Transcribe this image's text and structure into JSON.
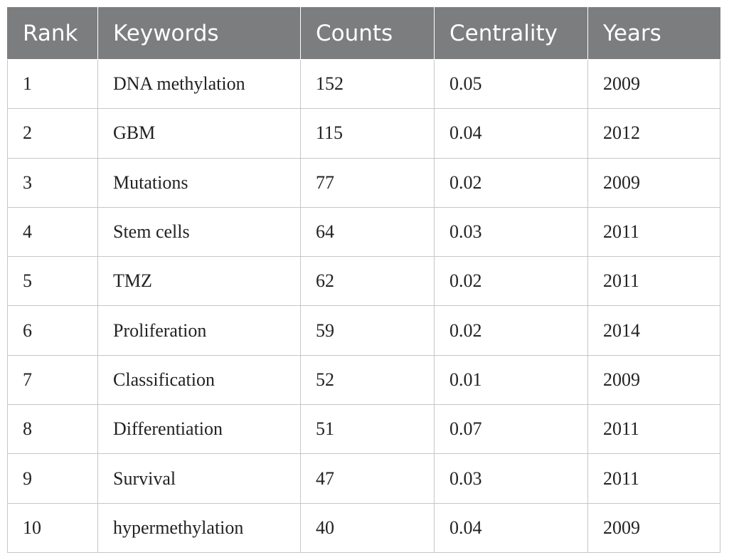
{
  "table": {
    "headers": [
      "Rank",
      "Keywords",
      "Counts",
      "Centrality",
      "Years"
    ],
    "rows": [
      [
        "1",
        "DNA methylation",
        "152",
        "0.05",
        "2009"
      ],
      [
        "2",
        "GBM",
        "115",
        "0.04",
        "2012"
      ],
      [
        "3",
        "Mutations",
        "77",
        "0.02",
        "2009"
      ],
      [
        "4",
        "Stem cells",
        "64",
        "0.03",
        "2011"
      ],
      [
        "5",
        "TMZ",
        "62",
        "0.02",
        "2011"
      ],
      [
        "6",
        "Proliferation",
        "59",
        "0.02",
        "2014"
      ],
      [
        "7",
        "Classification",
        "52",
        "0.01",
        "2009"
      ],
      [
        "8",
        "Differentiation",
        "51",
        "0.07",
        "2011"
      ],
      [
        "9",
        "Survival",
        "47",
        "0.03",
        "2011"
      ],
      [
        "10",
        "hypermethylation",
        "40",
        "0.04",
        "2009"
      ]
    ]
  },
  "colors": {
    "header_background": "#7b7d7f",
    "header_text": "#ffffff",
    "grid_line": "#c6c6c6"
  }
}
